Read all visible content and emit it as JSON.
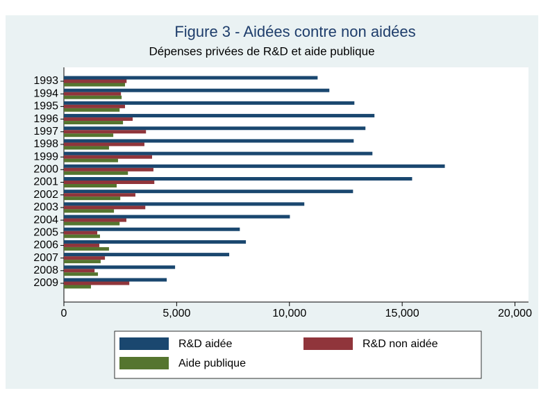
{
  "chart_data": {
    "type": "barh",
    "title": "Figure 3 - Aidées contre non aidées",
    "subtitle": "Dépenses privées de R&D et aide publique",
    "categories": [
      "1993",
      "1994",
      "1995",
      "1996",
      "1997",
      "1998",
      "1999",
      "2000",
      "2001",
      "2002",
      "2003",
      "2004",
      "2005",
      "2006",
      "2007",
      "2008",
      "2009"
    ],
    "series": [
      {
        "name": "R&D aidée",
        "color": "#1a476f",
        "values": [
          11250,
          11770,
          12880,
          13770,
          13370,
          12850,
          13680,
          16890,
          15440,
          12820,
          10660,
          10020,
          7800,
          8070,
          7330,
          4930,
          4560
        ]
      },
      {
        "name": "R&D non aidée",
        "color": "#90353b",
        "values": [
          2780,
          2530,
          2710,
          3050,
          3640,
          3570,
          3910,
          3970,
          4010,
          3170,
          3610,
          2770,
          1480,
          1570,
          1820,
          1360,
          2900
        ]
      },
      {
        "name": "Aide publique",
        "color": "#55752f",
        "values": [
          2710,
          2560,
          2470,
          2620,
          2190,
          2000,
          2400,
          2840,
          2340,
          2500,
          2220,
          2470,
          1600,
          2000,
          1630,
          1510,
          1200
        ]
      }
    ],
    "xlim": [
      0,
      20600
    ],
    "xticks": [
      0,
      {
        "value": 5000,
        "label": "5,000"
      },
      {
        "value": 10000,
        "label": "10,000"
      },
      {
        "value": 15000,
        "label": "15,000"
      },
      {
        "value": 20000,
        "label": "20,000"
      }
    ]
  }
}
